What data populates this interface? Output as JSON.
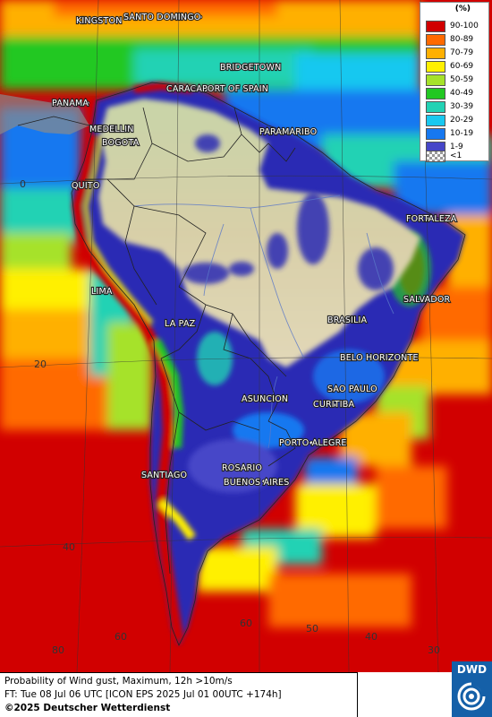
{
  "legend": {
    "unit": "(%)",
    "classes": [
      {
        "label": "90-100",
        "color": "#d10000"
      },
      {
        "label": "80-89",
        "color": "#ff6a00"
      },
      {
        "label": "70-79",
        "color": "#ffb000"
      },
      {
        "label": "60-69",
        "color": "#fff000"
      },
      {
        "label": "50-59",
        "color": "#a6e22a"
      },
      {
        "label": "40-49",
        "color": "#22c822"
      },
      {
        "label": "30-39",
        "color": "#22d2b4"
      },
      {
        "label": "20-29",
        "color": "#19c8f0"
      },
      {
        "label": "10-19",
        "color": "#1678f0"
      },
      {
        "label": "1-9",
        "color": "#4646c8"
      },
      {
        "label": "<1",
        "color": "checker"
      }
    ]
  },
  "cities": [
    "KINGSTON",
    "SANTO DOMINGO",
    "BRIDGETOWN",
    "CARACAS",
    "PORT OF SPAIN",
    "PANAMA",
    "MEDELLIN",
    "BOGOTA",
    "PARAMARIBO",
    "QUITO",
    "FORTALEZA",
    "LIMA",
    "SALVADOR",
    "BRASILIA",
    "LA PAZ",
    "BELO HORIZONTE",
    "SAO PAULO",
    "ASUNCION",
    "CURITIBA",
    "PORTO ALEGRE",
    "ROSARIO",
    "BUENOS AIRES",
    "SANTIAGO"
  ],
  "grid_labels": [
    "0",
    "20",
    "40",
    "60",
    "80",
    "60",
    "50",
    "40",
    "30"
  ],
  "caption": {
    "line1": "Probability of Wind gust, Maximum, 12h >10m/s",
    "line2": "FT: Tue 08 Jul 06 UTC [ICON EPS 2025 Jul 01 00UTC +174h]",
    "copyright": "©2025 Deutscher Wetterdienst"
  },
  "logo": {
    "text": "DWD"
  }
}
